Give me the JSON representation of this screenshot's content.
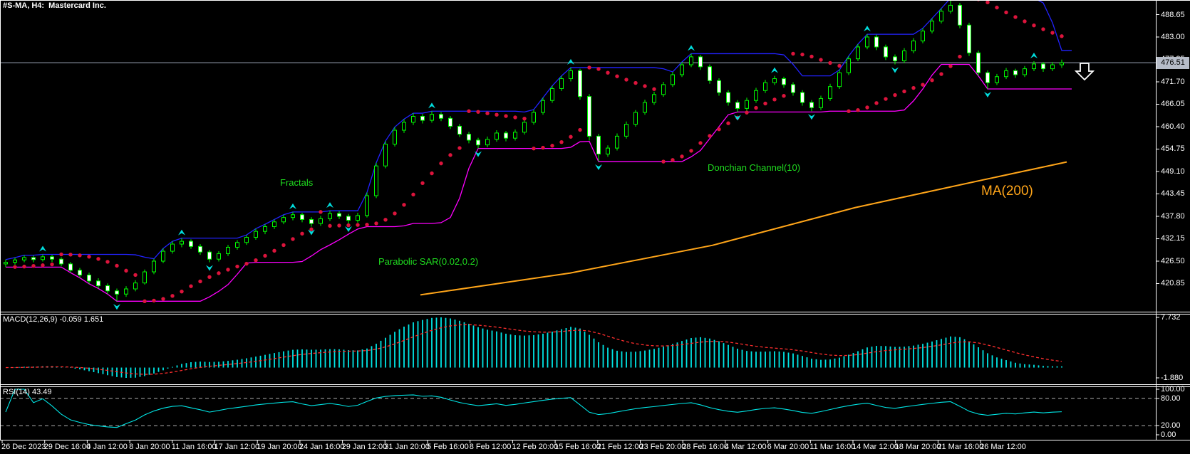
{
  "header": {
    "title": "#S-MA, H4:  Mastercard Inc."
  },
  "overlays": {
    "fractals_label": "Fractals",
    "psar_label": "Parabolic SAR(0.02,0.2)",
    "donchian_label": "Donchian Channel(10)",
    "ma_label": "MA(200)"
  },
  "panels": {
    "macd": {
      "label": "MACD(12,26,9) -0.059 1.651",
      "scale": [
        "7.732",
        "-1.880"
      ]
    },
    "rsi": {
      "label": "RSI(14) 43.49",
      "scale": [
        "100.00",
        "80.00",
        "20.00",
        "0.00"
      ]
    }
  },
  "icons": {
    "current_price_arrow": "white-down-arrow",
    "fractal_up": "cyan-up-arrow",
    "fractal_down": "cyan-down-arrow"
  },
  "colors": {
    "background": "#000000",
    "candle_outline": "#00ff00",
    "bull_body": "#000000",
    "bear_body": "#ffffff",
    "donchian_upper": "#2222ff",
    "donchian_lower": "#ff00ff",
    "psar_dots": "#dc143c",
    "ma200": "#ffa519",
    "fractal_arrows": "#00dddd",
    "macd_histogram": "#00e6e6",
    "macd_signal": "#ff2e2e",
    "rsi_line": "#00e6e6",
    "current_price_line": "#9aa4b4",
    "badge_bg": "#b6bcc8",
    "label_green": "#1fdd1f",
    "axis": "#ffffff"
  },
  "chart_data": {
    "type": "candlestick",
    "symbol": "#S-MA",
    "timeframe": "H4",
    "company": "Mastercard Inc.",
    "current_price_label": "476.51",
    "current_price": 476.51,
    "price_axis_ticks": [
      "488.65",
      "483.00",
      "477.35",
      "471.70",
      "466.05",
      "460.40",
      "454.75",
      "449.10",
      "443.45",
      "437.80",
      "432.15",
      "426.50",
      "420.85"
    ],
    "x_axis_labels": [
      "26 Dec 2023",
      "29 Dec 16:00",
      "4 Jan 12:00",
      "8 Jan 20:00",
      "11 Jan 16:00",
      "17 Jan 12:00",
      "19 Jan 20:00",
      "24 Jan 16:00",
      "29 Jan 12:00",
      "31 Jan 20:00",
      "5 Feb 16:00",
      "8 Feb 12:00",
      "12 Feb 20:00",
      "15 Feb 16:00",
      "21 Feb 12:00",
      "23 Feb 20:00",
      "28 Feb 16:00",
      "4 Mar 12:00",
      "6 Mar 20:00",
      "11 Mar 16:00",
      "14 Mar 12:00",
      "18 Mar 20:00",
      "21 Mar 16:00",
      "26 Mar 12:00"
    ],
    "candles": [
      [
        425.8,
        426.9,
        425.0,
        426.2
      ],
      [
        426.2,
        427.4,
        425.6,
        426.8
      ],
      [
        426.8,
        428.0,
        426.2,
        427.4
      ],
      [
        427.4,
        427.9,
        426.2,
        426.9
      ],
      [
        426.9,
        428.2,
        426.4,
        427.6
      ],
      [
        427.6,
        428.1,
        426.3,
        427.0
      ],
      [
        427.0,
        427.5,
        425.2,
        425.8
      ],
      [
        425.8,
        426.3,
        423.6,
        424.2
      ],
      [
        424.2,
        424.8,
        422.3,
        423.0
      ],
      [
        423.0,
        423.6,
        420.8,
        421.5
      ],
      [
        421.5,
        422.2,
        419.6,
        420.3
      ],
      [
        420.3,
        420.9,
        418.2,
        419.0
      ],
      [
        419.0,
        419.6,
        416.4,
        418.2
      ],
      [
        418.2,
        420.2,
        417.5,
        419.5
      ],
      [
        419.5,
        421.7,
        418.9,
        421.0
      ],
      [
        421.0,
        424.4,
        420.6,
        423.8
      ],
      [
        423.8,
        427.1,
        423.2,
        426.5
      ],
      [
        426.5,
        429.7,
        426.0,
        429.0
      ],
      [
        429.0,
        431.5,
        428.4,
        430.8
      ],
      [
        430.8,
        432.3,
        430.0,
        431.5
      ],
      [
        431.5,
        432.0,
        429.6,
        430.2
      ],
      [
        430.2,
        430.8,
        428.1,
        428.8
      ],
      [
        428.8,
        429.3,
        426.2,
        427.0
      ],
      [
        427.0,
        429.0,
        426.4,
        428.4
      ],
      [
        428.4,
        430.6,
        427.8,
        430.0
      ],
      [
        430.0,
        431.8,
        429.4,
        431.2
      ],
      [
        431.2,
        433.1,
        430.6,
        432.5
      ],
      [
        432.5,
        434.7,
        431.9,
        434.0
      ],
      [
        434.0,
        435.8,
        433.3,
        435.2
      ],
      [
        435.2,
        437.0,
        434.6,
        436.4
      ],
      [
        436.4,
        438.2,
        435.8,
        437.5
      ],
      [
        437.5,
        438.9,
        436.8,
        438.2
      ],
      [
        438.2,
        438.7,
        436.3,
        437.0
      ],
      [
        437.0,
        437.6,
        435.2,
        436.0
      ],
      [
        436.0,
        437.9,
        435.4,
        437.2
      ],
      [
        437.2,
        439.2,
        436.6,
        438.5
      ],
      [
        438.5,
        439.1,
        437.1,
        437.8
      ],
      [
        437.8,
        438.4,
        436.0,
        436.8
      ],
      [
        436.8,
        438.7,
        436.2,
        438.0
      ],
      [
        438.0,
        443.8,
        437.5,
        443.0
      ],
      [
        443.0,
        451.3,
        442.4,
        450.5
      ],
      [
        450.5,
        456.8,
        449.9,
        456.0
      ],
      [
        456.0,
        460.3,
        455.4,
        459.5
      ],
      [
        459.5,
        462.3,
        458.8,
        461.5
      ],
      [
        461.5,
        463.8,
        460.8,
        463.0
      ],
      [
        463.0,
        463.6,
        461.2,
        462.0
      ],
      [
        462.0,
        464.3,
        461.4,
        463.5
      ],
      [
        463.5,
        464.1,
        461.8,
        462.5
      ],
      [
        462.5,
        463.1,
        459.8,
        460.5
      ],
      [
        460.5,
        461.1,
        457.8,
        458.5
      ],
      [
        458.5,
        459.1,
        456.2,
        457.0
      ],
      [
        457.0,
        457.6,
        454.9,
        455.8
      ],
      [
        455.8,
        457.9,
        455.2,
        457.2
      ],
      [
        457.2,
        459.5,
        456.6,
        458.8
      ],
      [
        458.8,
        459.3,
        456.7,
        457.5
      ],
      [
        457.5,
        459.7,
        456.9,
        459.0
      ],
      [
        459.0,
        462.2,
        458.4,
        461.5
      ],
      [
        461.5,
        464.7,
        460.9,
        464.0
      ],
      [
        464.0,
        467.7,
        463.4,
        467.0
      ],
      [
        467.0,
        470.7,
        466.4,
        470.0
      ],
      [
        470.0,
        473.2,
        469.4,
        472.5
      ],
      [
        472.5,
        475.3,
        471.8,
        474.5
      ],
      [
        474.5,
        475.0,
        467.2,
        468.0
      ],
      [
        468.0,
        468.6,
        456.9,
        458.0
      ],
      [
        458.0,
        458.6,
        451.6,
        453.5
      ],
      [
        453.5,
        455.7,
        452.8,
        455.0
      ],
      [
        455.0,
        458.7,
        454.4,
        458.0
      ],
      [
        458.0,
        461.7,
        457.4,
        461.0
      ],
      [
        461.0,
        464.6,
        460.4,
        464.0
      ],
      [
        464.0,
        467.2,
        463.4,
        466.5
      ],
      [
        466.5,
        469.2,
        465.9,
        468.5
      ],
      [
        468.5,
        471.7,
        467.9,
        471.0
      ],
      [
        471.0,
        474.2,
        470.4,
        473.5
      ],
      [
        473.5,
        476.7,
        472.9,
        476.0
      ],
      [
        476.0,
        478.8,
        475.4,
        478.0
      ],
      [
        478.0,
        478.5,
        474.7,
        475.5
      ],
      [
        475.5,
        476.1,
        471.2,
        472.0
      ],
      [
        472.0,
        472.6,
        468.2,
        469.0
      ],
      [
        469.0,
        469.6,
        465.7,
        466.5
      ],
      [
        466.5,
        467.1,
        464.1,
        465.0
      ],
      [
        465.0,
        467.7,
        464.4,
        467.0
      ],
      [
        467.0,
        470.2,
        466.4,
        469.5
      ],
      [
        469.5,
        472.2,
        468.9,
        471.5
      ],
      [
        471.5,
        473.2,
        470.9,
        472.5
      ],
      [
        472.5,
        473.0,
        470.2,
        471.0
      ],
      [
        471.0,
        471.6,
        468.2,
        469.0
      ],
      [
        469.0,
        469.6,
        465.7,
        466.5
      ],
      [
        466.5,
        467.1,
        464.3,
        465.2
      ],
      [
        465.2,
        468.2,
        464.6,
        467.5
      ],
      [
        467.5,
        471.2,
        466.9,
        470.5
      ],
      [
        470.5,
        474.7,
        469.9,
        474.0
      ],
      [
        474.0,
        478.2,
        473.4,
        477.5
      ],
      [
        477.5,
        481.2,
        476.9,
        480.5
      ],
      [
        480.5,
        483.7,
        479.9,
        483.0
      ],
      [
        483.0,
        483.6,
        479.7,
        480.5
      ],
      [
        480.5,
        481.1,
        477.2,
        478.0
      ],
      [
        478.0,
        478.6,
        476.1,
        477.0
      ],
      [
        477.0,
        480.2,
        476.4,
        479.5
      ],
      [
        479.5,
        482.7,
        478.9,
        482.0
      ],
      [
        482.0,
        485.2,
        481.4,
        484.5
      ],
      [
        484.5,
        487.7,
        483.9,
        487.0
      ],
      [
        487.0,
        490.2,
        486.4,
        489.5
      ],
      [
        489.5,
        492.8,
        488.9,
        491.0
      ],
      [
        491.0,
        491.6,
        485.2,
        486.0
      ],
      [
        486.0,
        486.6,
        478.2,
        479.0
      ],
      [
        479.0,
        479.6,
        473.2,
        474.0
      ],
      [
        474.0,
        474.6,
        469.9,
        471.5
      ],
      [
        471.5,
        473.7,
        470.9,
        473.0
      ],
      [
        473.0,
        475.2,
        472.4,
        474.5
      ],
      [
        474.5,
        475.0,
        472.7,
        473.5
      ],
      [
        473.5,
        475.7,
        472.9,
        475.0
      ],
      [
        475.0,
        476.9,
        474.4,
        476.2
      ],
      [
        476.2,
        476.7,
        474.2,
        475.0
      ],
      [
        475.0,
        476.7,
        474.4,
        476.0
      ],
      [
        476.0,
        477.3,
        475.2,
        476.5
      ]
    ],
    "indicators": {
      "donchian_period": 10,
      "psar_step": 0.02,
      "psar_max": 0.2,
      "ma200_points": [
        [
          590,
          418.0
        ],
        [
          800,
          423.5
        ],
        [
          1000,
          430.5
        ],
        [
          1200,
          440.0
        ],
        [
          1380,
          447.0
        ],
        [
          1497,
          451.5
        ]
      ],
      "macd_params": [
        12,
        26,
        9
      ],
      "rsi_period": 14,
      "rsi_levels": [
        80,
        20
      ]
    }
  }
}
